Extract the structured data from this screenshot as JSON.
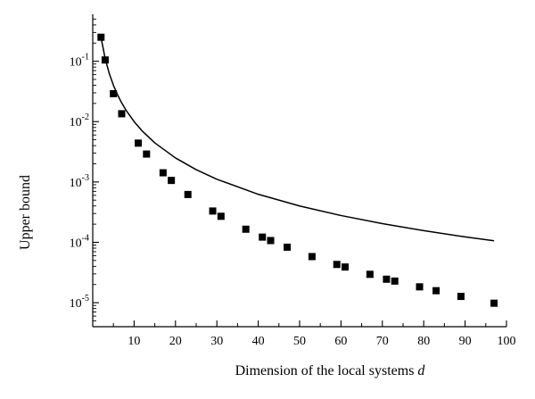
{
  "chart_data": {
    "type": "scatter",
    "title": "",
    "xlabel": "Dimension of the local systems",
    "xlabel_var": "d",
    "ylabel": "Upper bound",
    "xlim": [
      0,
      100
    ],
    "ylim": [
      4e-06,
      0.6
    ],
    "yscale": "log",
    "grid": false,
    "legend": "none",
    "x_ticks": [
      "10",
      "20",
      "30",
      "40",
      "50",
      "60",
      "70",
      "80",
      "90",
      "100"
    ],
    "y_ticks": [
      {
        "base": "10",
        "exp": "-1",
        "value": 0.1
      },
      {
        "base": "10",
        "exp": "-2",
        "value": 0.01
      },
      {
        "base": "10",
        "exp": "-3",
        "value": 0.001
      },
      {
        "base": "10",
        "exp": "-4",
        "value": 0.0001
      },
      {
        "base": "10",
        "exp": "-5",
        "value": 1e-05
      }
    ],
    "series": [
      {
        "kind": "points",
        "marker": "square",
        "color": "#000000",
        "x": [
          2,
          3,
          5,
          7,
          11,
          13,
          17,
          19,
          23,
          29,
          31,
          37,
          41,
          43,
          47,
          53,
          59,
          61,
          67,
          71,
          73,
          79,
          83,
          89,
          97
        ],
        "y": [
          0.25,
          0.105,
          0.029,
          0.0135,
          0.0044,
          0.0029,
          0.00142,
          0.00106,
          0.00062,
          0.00033,
          0.00027,
          0.000165,
          0.000122,
          0.000107,
          8.3e-05,
          5.8e-05,
          4.3e-05,
          3.9e-05,
          2.95e-05,
          2.45e-05,
          2.28e-05,
          1.83e-05,
          1.58e-05,
          1.27e-05,
          9.8e-06
        ]
      },
      {
        "kind": "line",
        "color": "#000000",
        "x": [
          2,
          3,
          4,
          5,
          6,
          7,
          8,
          10,
          12,
          15,
          20,
          25,
          30,
          40,
          50,
          60,
          70,
          80,
          90,
          97
        ],
        "y": [
          0.25,
          0.111,
          0.0625,
          0.04,
          0.0278,
          0.0204,
          0.0156,
          0.01,
          0.00694,
          0.00444,
          0.0025,
          0.0016,
          0.00111,
          0.000625,
          0.0004,
          0.000278,
          0.000204,
          0.000156,
          0.000123,
          0.000106
        ]
      }
    ]
  }
}
